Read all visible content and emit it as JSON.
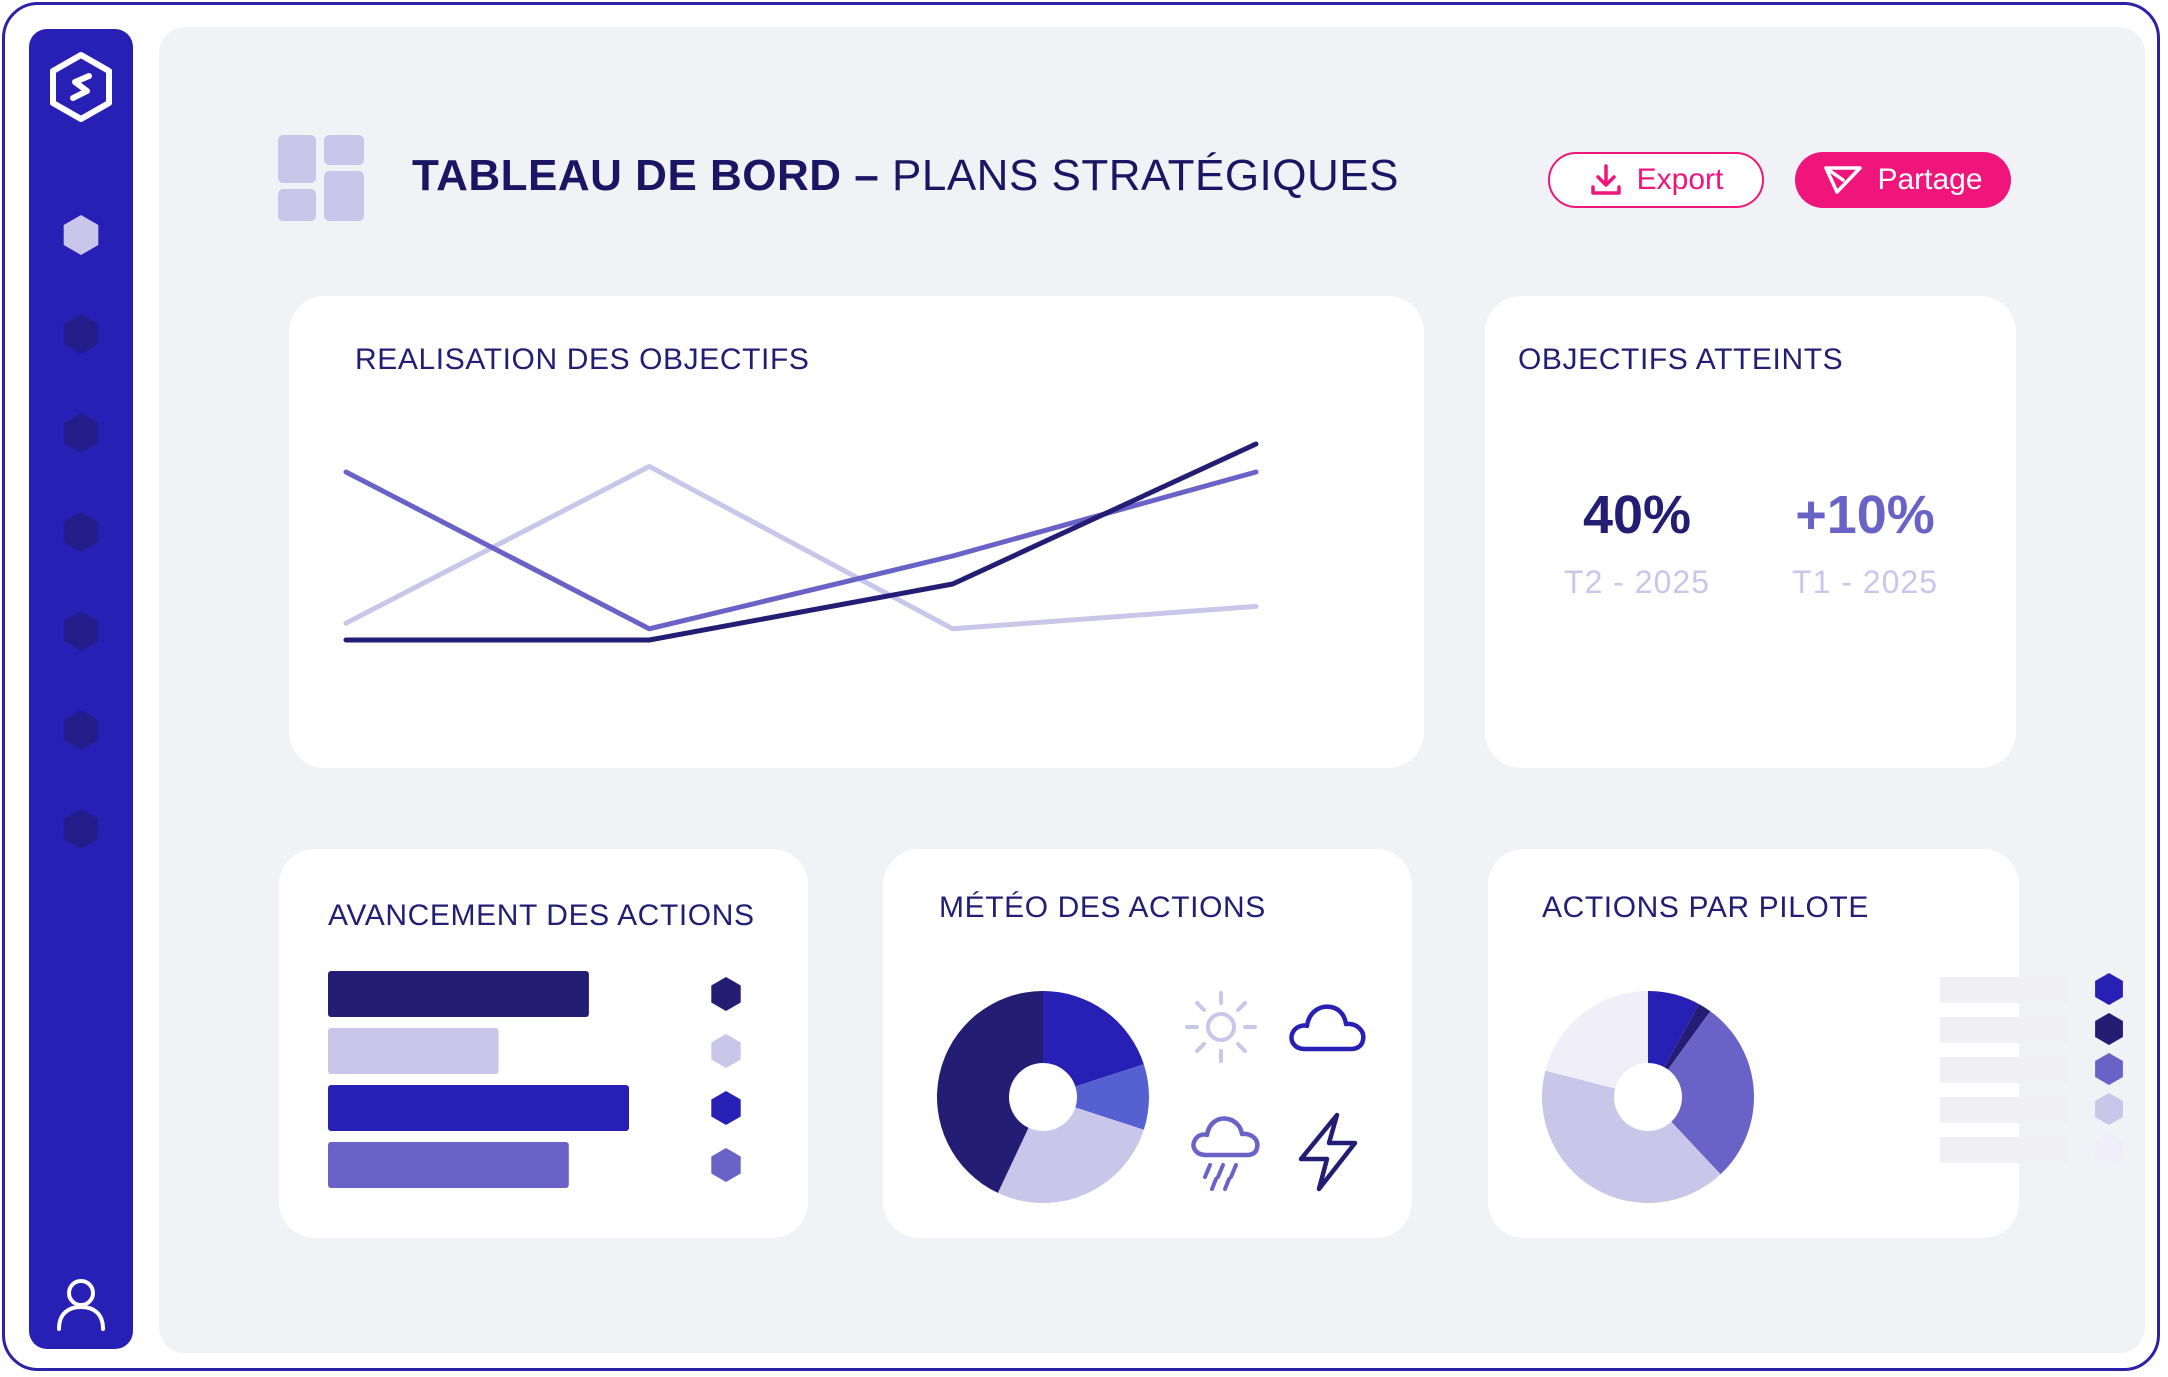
{
  "header": {
    "title_bold": "TABLEAU DE BORD –",
    "title_light": "PLANS  STRATÉGIQUES",
    "export_label": "Export",
    "share_label": "Partage"
  },
  "sidebar": {
    "items": [
      "home",
      "item-2",
      "item-3",
      "item-4",
      "item-5",
      "item-6",
      "item-7"
    ],
    "active_index": 0
  },
  "cards": {
    "objectives": {
      "title": "REALISATION DES OBJECTIFS"
    },
    "reached": {
      "title": "OBJECTIFS ATTEINTS",
      "kpis": [
        {
          "value": "40%",
          "label": "T2 - 2025",
          "color": "#231d74"
        },
        {
          "value": "+10%",
          "label": "T1 - 2025",
          "color": "#6a63c7"
        }
      ]
    },
    "progress": {
      "title": "AVANCEMENT DES ACTIONS"
    },
    "weather": {
      "title": "MÉTÉO DES ACTIONS"
    },
    "pilots": {
      "title": "ACTIONS PAR PILOTE"
    }
  },
  "colors": {
    "accent": "#f0157a",
    "sidebar": "#2820b5",
    "navy": "#231d74",
    "indigo": "#2820b5",
    "violet": "#6a63c7",
    "lavender": "#c9c6ea",
    "pale": "#efeef9"
  },
  "chart_data": [
    {
      "type": "line",
      "x": [
        1,
        2,
        3,
        4
      ],
      "series": [
        {
          "values": [
            1.0,
            1.0,
            2.0,
            4.5
          ],
          "color": "#231d74"
        },
        {
          "values": [
            4.0,
            1.2,
            2.5,
            4.0
          ],
          "color": "#6a63c7"
        },
        {
          "values": [
            1.3,
            4.1,
            1.2,
            1.6
          ],
          "color": "#c9c6ea"
        }
      ],
      "ylim": [
        0,
        5
      ],
      "grid": false,
      "legend": "none"
    },
    {
      "type": "bar",
      "orientation": "horizontal",
      "categories": [
        "",
        "",
        "",
        ""
      ],
      "values": [
        26,
        17,
        30,
        24
      ],
      "colors": [
        "#231d74",
        "#c9c6ea",
        "#2820b5",
        "#6a63c7"
      ],
      "xlim": [
        0,
        30
      ]
    },
    {
      "type": "pie",
      "donut": true,
      "values": [
        20,
        10,
        27,
        43
      ],
      "colors": [
        "#2820b5",
        "#5561d0",
        "#c9c6ea",
        "#231d74"
      ],
      "icons": [
        "sun-icon",
        "cloud-icon",
        "rain-icon",
        "lightning-icon"
      ]
    },
    {
      "type": "pie",
      "donut": true,
      "values": [
        8,
        2,
        28,
        41,
        21
      ],
      "colors": [
        "#2820b5",
        "#231d74",
        "#6a63c7",
        "#c9c6ea",
        "#efeef9"
      ]
    }
  ]
}
